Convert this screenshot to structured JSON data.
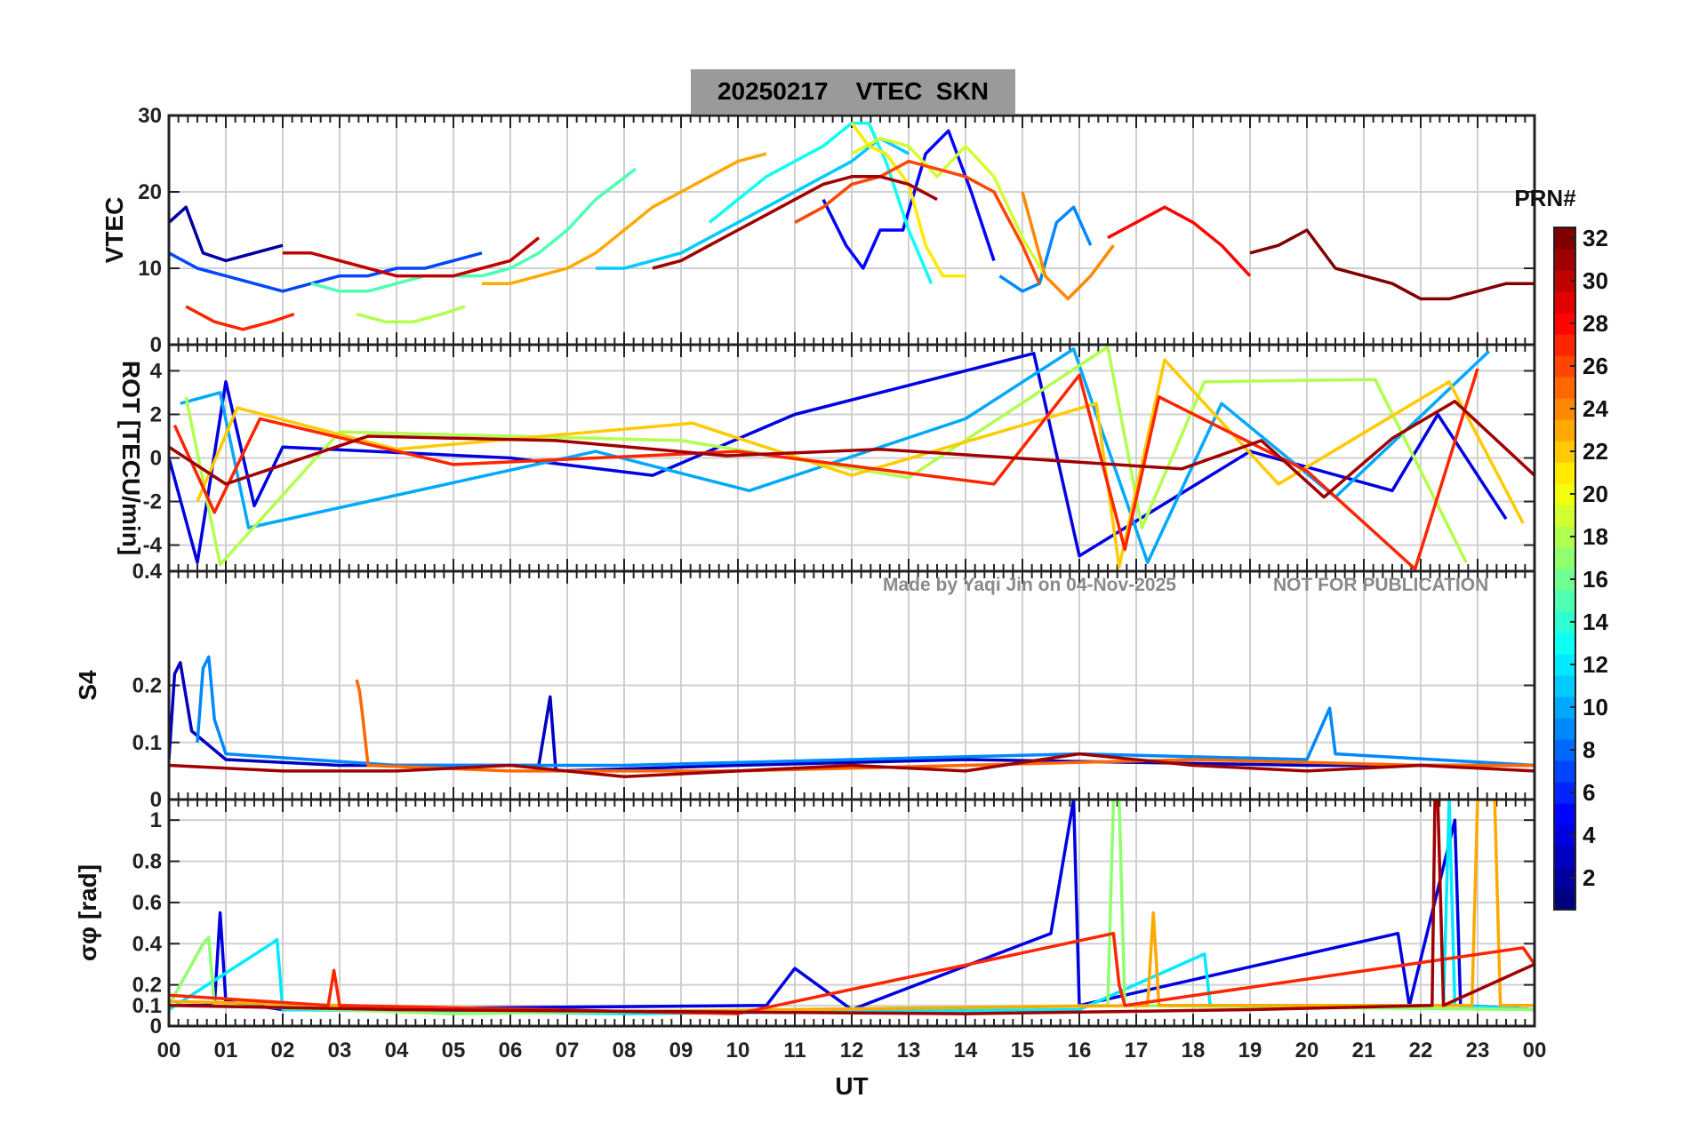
{
  "title": {
    "date": "20250217",
    "quantity": "VTEC",
    "station": "SKN"
  },
  "watermark": {
    "author": "Made by Yaqi Jin on 04-Nov-2025",
    "notice": "NOT FOR PUBLICATION"
  },
  "colorbar": {
    "title": "PRN#",
    "ticks": [
      "32",
      "30",
      "28",
      "26",
      "24",
      "22",
      "20",
      "18",
      "16",
      "14",
      "12",
      "10",
      "8",
      "6",
      "4",
      "2"
    ],
    "range": [
      1,
      32
    ],
    "colormap": "jet"
  },
  "chart_data": [
    {
      "type": "line",
      "panel": "vtec",
      "ylabel": "VTEC",
      "ylim": [
        0,
        30
      ],
      "yticks": [
        "0",
        "10",
        "20",
        "30"
      ],
      "xlim": [
        0,
        24
      ],
      "grid": true,
      "series": [
        {
          "name": "PRN 2",
          "prn": 2,
          "x": [
            0.0,
            0.3,
            0.6,
            1.0,
            1.5,
            2.0
          ],
          "y": [
            16,
            18,
            12,
            11,
            12,
            13
          ]
        },
        {
          "name": "PRN 5",
          "prn": 5,
          "x": [
            11.5,
            11.9,
            12.2,
            12.5,
            12.9,
            13.3,
            13.7,
            14.1,
            14.5
          ],
          "y": [
            19,
            13,
            10,
            15,
            15,
            25,
            28,
            20,
            11
          ]
        },
        {
          "name": "PRN 7",
          "prn": 7,
          "x": [
            0.0,
            0.5,
            1.0,
            1.5,
            2.0,
            2.5,
            3.0,
            3.5,
            4.0,
            4.5,
            5.0,
            5.5
          ],
          "y": [
            12,
            10,
            9,
            8,
            7,
            8,
            9,
            9,
            10,
            10,
            11,
            12
          ]
        },
        {
          "name": "PRN 9",
          "prn": 9,
          "x": [
            14.6,
            15.0,
            15.3,
            15.6,
            15.9,
            16.2
          ],
          "y": [
            9,
            7,
            8,
            16,
            18,
            13
          ]
        },
        {
          "name": "PRN 11",
          "prn": 11,
          "x": [
            7.5,
            8.0,
            8.5,
            9.0,
            9.5,
            10.0,
            10.5,
            11.0,
            11.5,
            12.0,
            12.5,
            13.0
          ],
          "y": [
            10,
            10,
            11,
            12,
            14,
            16,
            18,
            20,
            22,
            24,
            27,
            25
          ]
        },
        {
          "name": "PRN 13",
          "prn": 13,
          "x": [
            9.5,
            10.0,
            10.5,
            11.0,
            11.5,
            12.0,
            12.3,
            12.6,
            13.0,
            13.4
          ],
          "y": [
            16,
            19,
            22,
            24,
            26,
            29,
            29,
            24,
            15,
            8
          ]
        },
        {
          "name": "PRN 15",
          "prn": 15,
          "x": [
            2.5,
            3.0,
            3.5,
            4.0,
            4.5,
            5.0,
            5.5,
            6.0,
            6.5,
            7.0,
            7.5,
            8.2
          ],
          "y": [
            8,
            7,
            7,
            8,
            9,
            9,
            9,
            10,
            12,
            15,
            19,
            23
          ]
        },
        {
          "name": "PRN 18",
          "prn": 18,
          "x": [
            3.3,
            3.8,
            4.3,
            4.8,
            5.2
          ],
          "y": [
            4,
            3,
            3,
            4,
            5
          ]
        },
        {
          "name": "PRN 19",
          "prn": 19,
          "x": [
            12.0,
            12.5,
            13.0,
            13.5,
            14.0,
            14.5,
            15.0,
            15.4
          ],
          "y": [
            25,
            27,
            26,
            22,
            26,
            22,
            14,
            9
          ]
        },
        {
          "name": "PRN 21",
          "prn": 21,
          "x": [
            12.0,
            12.3,
            12.6,
            13.0,
            13.3,
            13.6,
            14.0
          ],
          "y": [
            29,
            26,
            25,
            21,
            13,
            9,
            9
          ]
        },
        {
          "name": "PRN 23",
          "prn": 23,
          "x": [
            5.5,
            6.0,
            6.5,
            7.0,
            7.5,
            8.0,
            8.5,
            9.0,
            9.5,
            10.0,
            10.5
          ],
          "y": [
            8,
            8,
            9,
            10,
            12,
            15,
            18,
            20,
            22,
            24,
            25
          ]
        },
        {
          "name": "PRN 24",
          "prn": 24,
          "x": [
            15.0,
            15.4,
            15.8,
            16.2,
            16.6
          ],
          "y": [
            20,
            9,
            6,
            9,
            13
          ]
        },
        {
          "name": "PRN 26",
          "prn": 26,
          "x": [
            11.0,
            11.5,
            12.0,
            12.5,
            13.0,
            13.5,
            14.0,
            14.5,
            15.0,
            15.3
          ],
          "y": [
            16,
            18,
            21,
            22,
            24,
            23,
            22,
            20,
            13,
            8
          ]
        },
        {
          "name": "PRN 27",
          "prn": 27,
          "x": [
            0.3,
            0.8,
            1.3,
            1.8,
            2.2
          ],
          "y": [
            5,
            3,
            2,
            3,
            4
          ]
        },
        {
          "name": "PRN 28",
          "prn": 28,
          "x": [
            16.5,
            17.0,
            17.5,
            18.0,
            18.5,
            19.0
          ],
          "y": [
            14,
            16,
            18,
            16,
            13,
            9
          ]
        },
        {
          "name": "PRN 30",
          "prn": 30,
          "x": [
            2.0,
            2.5,
            3.0,
            3.5,
            4.0,
            4.5,
            5.0,
            5.5,
            6.0,
            6.5
          ],
          "y": [
            12,
            12,
            11,
            10,
            9,
            9,
            9,
            10,
            11,
            14
          ]
        },
        {
          "name": "PRN 31",
          "prn": 31,
          "x": [
            8.5,
            9.0,
            9.5,
            10.0,
            10.5,
            11.0,
            11.5,
            12.0,
            12.5,
            13.0,
            13.5
          ],
          "y": [
            10,
            11,
            13,
            15,
            17,
            19,
            21,
            22,
            22,
            21,
            19
          ]
        },
        {
          "name": "PRN 32",
          "prn": 32,
          "x": [
            19.0,
            19.5,
            20.0,
            20.5,
            21.0,
            21.5,
            22.0,
            22.5,
            23.0,
            23.5,
            24.0
          ],
          "y": [
            12,
            13,
            15,
            10,
            9,
            8,
            6,
            6,
            7,
            8,
            8
          ]
        }
      ]
    },
    {
      "type": "line",
      "panel": "rot",
      "ylabel": "ROT [TECU/min]",
      "ylim": [
        -5.2,
        5.2
      ],
      "yticks": [
        "-4",
        "-2",
        "0",
        "2",
        "4"
      ],
      "xlim": [
        0,
        24
      ],
      "grid": true,
      "series": [
        {
          "name": "PRN 4",
          "prn": 4,
          "x": [
            0.0,
            0.5,
            1.0,
            1.5,
            2.0,
            6.0,
            8.5,
            11.0,
            15.2,
            16.0,
            19.0,
            21.5,
            22.3,
            23.5
          ],
          "y": [
            0,
            -4.8,
            3.5,
            -2.2,
            0.5,
            0,
            -0.8,
            2.0,
            4.8,
            -4.5,
            0.3,
            -1.5,
            2.0,
            -2.8
          ]
        },
        {
          "name": "PRN 10",
          "prn": 10,
          "x": [
            0.2,
            0.9,
            1.4,
            7.5,
            10.2,
            14.0,
            15.9,
            17.2,
            18.5,
            20.5,
            23.2
          ],
          "y": [
            2.5,
            3.0,
            -3.2,
            0.3,
            -1.5,
            1.8,
            5.0,
            -4.8,
            2.5,
            -1.8,
            4.9
          ]
        },
        {
          "name": "PRN 18",
          "prn": 18,
          "x": [
            0.3,
            0.9,
            3.0,
            9.0,
            13.0,
            16.5,
            17.1,
            18.2,
            21.2,
            22.8
          ],
          "y": [
            2.8,
            -4.9,
            1.2,
            0.8,
            -0.9,
            5.1,
            -3.2,
            3.5,
            3.6,
            -4.8
          ]
        },
        {
          "name": "PRN 22",
          "prn": 22,
          "x": [
            0.5,
            1.2,
            4.0,
            9.2,
            12.0,
            16.3,
            16.7,
            17.5,
            19.5,
            22.5,
            23.8
          ],
          "y": [
            -2.0,
            2.3,
            0.4,
            1.6,
            -0.8,
            2.5,
            -5.0,
            4.5,
            -1.2,
            3.5,
            -3.0
          ]
        },
        {
          "name": "PRN 27",
          "prn": 27,
          "x": [
            0.1,
            0.8,
            1.6,
            5.0,
            10.0,
            14.5,
            16.0,
            16.8,
            17.4,
            20.0,
            21.9,
            23.0
          ],
          "y": [
            1.5,
            -2.5,
            1.8,
            -0.3,
            0.3,
            -1.2,
            3.8,
            -4.2,
            2.8,
            -0.6,
            -5.1,
            4.1
          ]
        },
        {
          "name": "PRN 31",
          "prn": 31,
          "x": [
            0.0,
            1.0,
            3.5,
            6.8,
            9.8,
            12.5,
            17.8,
            19.2,
            20.3,
            21.5,
            22.6,
            24.0
          ],
          "y": [
            0.5,
            -1.2,
            1.0,
            0.8,
            0.1,
            0.4,
            -0.5,
            0.8,
            -1.8,
            0.9,
            2.6,
            -0.8
          ]
        }
      ]
    },
    {
      "type": "line",
      "panel": "s4",
      "ylabel": "S4",
      "ylim": [
        0,
        0.4
      ],
      "yticks": [
        "0",
        "0.1",
        "0.2",
        "0.4"
      ],
      "xlim": [
        0,
        24
      ],
      "grid": true,
      "series": [
        {
          "name": "PRN 3",
          "prn": 3,
          "x": [
            0.0,
            0.1,
            0.2,
            0.4,
            1.0,
            3.0,
            6.5,
            6.7,
            6.8,
            10.0,
            14.0,
            20.0,
            24.0
          ],
          "y": [
            0.07,
            0.22,
            0.24,
            0.12,
            0.07,
            0.06,
            0.06,
            0.18,
            0.05,
            0.06,
            0.07,
            0.06,
            0.06
          ]
        },
        {
          "name": "PRN 9",
          "prn": 9,
          "x": [
            0.5,
            0.6,
            0.7,
            0.8,
            1.0,
            4.0,
            8.0,
            12.0,
            16.0,
            20.0,
            20.4,
            20.5,
            24.0
          ],
          "y": [
            0.1,
            0.23,
            0.25,
            0.14,
            0.08,
            0.06,
            0.06,
            0.07,
            0.08,
            0.07,
            0.16,
            0.08,
            0.06
          ]
        },
        {
          "name": "PRN 25",
          "prn": 25,
          "x": [
            3.3,
            3.35,
            3.4,
            3.5,
            6.0,
            10.0,
            14.0,
            18.0,
            22.0,
            24.0
          ],
          "y": [
            0.21,
            0.19,
            0.15,
            0.06,
            0.05,
            0.05,
            0.06,
            0.07,
            0.06,
            0.06
          ]
        },
        {
          "name": "PRN 31",
          "prn": 31,
          "x": [
            0.0,
            2.0,
            4.0,
            6.0,
            8.0,
            10.0,
            12.0,
            14.0,
            16.0,
            18.0,
            20.0,
            22.0,
            24.0
          ],
          "y": [
            0.06,
            0.05,
            0.05,
            0.06,
            0.04,
            0.05,
            0.06,
            0.05,
            0.08,
            0.06,
            0.05,
            0.06,
            0.05
          ]
        }
      ]
    },
    {
      "type": "line",
      "panel": "sigma_phi",
      "ylabel": "σφ [rad]",
      "ylim": [
        0,
        1.1
      ],
      "yticks": [
        "0",
        "0.1",
        "0.2",
        "0.4",
        "0.6",
        "0.8",
        "1"
      ],
      "xlim": [
        0,
        24
      ],
      "grid": true,
      "series": [
        {
          "name": "PRN 4",
          "prn": 4,
          "x": [
            0.0,
            0.8,
            0.9,
            1.0,
            2.0,
            10.5,
            11.0,
            12.0,
            15.5,
            15.9,
            16.0,
            21.6,
            21.8,
            22.6,
            22.7,
            24.0
          ],
          "y": [
            0.1,
            0.1,
            0.55,
            0.12,
            0.08,
            0.1,
            0.28,
            0.08,
            0.45,
            1.1,
            0.1,
            0.45,
            0.1,
            1.0,
            0.1,
            0.08
          ]
        },
        {
          "name": "PRN 12",
          "prn": 12,
          "x": [
            0.0,
            1.8,
            1.9,
            2.0,
            8.0,
            16.0,
            18.2,
            18.3,
            22.4,
            22.5,
            22.6,
            24.0
          ],
          "y": [
            0.08,
            0.4,
            0.42,
            0.08,
            0.06,
            0.08,
            0.35,
            0.1,
            0.1,
            1.1,
            0.1,
            0.08
          ]
        },
        {
          "name": "PRN 17",
          "prn": 17,
          "x": [
            0.0,
            0.6,
            0.7,
            0.8,
            5.0,
            16.5,
            16.6,
            16.7,
            16.8,
            24.0
          ],
          "y": [
            0.1,
            0.4,
            0.43,
            0.1,
            0.06,
            0.1,
            1.1,
            1.1,
            0.1,
            0.08
          ]
        },
        {
          "name": "PRN 23",
          "prn": 23,
          "x": [
            0.0,
            3.0,
            8.0,
            17.2,
            17.3,
            17.4,
            22.9,
            23.0,
            23.1,
            23.3,
            23.4,
            24.0
          ],
          "y": [
            0.12,
            0.1,
            0.07,
            0.1,
            0.55,
            0.1,
            0.1,
            1.1,
            1.1,
            1.1,
            0.1,
            0.1
          ]
        },
        {
          "name": "PRN 27",
          "prn": 27,
          "x": [
            0.0,
            2.8,
            2.9,
            3.0,
            10.0,
            16.6,
            16.7,
            16.8,
            23.8,
            24.0
          ],
          "y": [
            0.15,
            0.1,
            0.27,
            0.1,
            0.06,
            0.45,
            0.2,
            0.1,
            0.38,
            0.3
          ]
        },
        {
          "name": "PRN 31",
          "prn": 31,
          "x": [
            0.0,
            4.0,
            9.0,
            14.0,
            19.0,
            22.2,
            22.25,
            22.3,
            22.4,
            24.0
          ],
          "y": [
            0.1,
            0.08,
            0.07,
            0.06,
            0.08,
            0.1,
            1.1,
            1.1,
            0.1,
            0.3
          ]
        }
      ]
    }
  ],
  "xaxis": {
    "label": "UT",
    "ticks": [
      "00",
      "01",
      "02",
      "03",
      "04",
      "05",
      "06",
      "07",
      "08",
      "09",
      "10",
      "11",
      "12",
      "13",
      "14",
      "15",
      "16",
      "17",
      "18",
      "19",
      "20",
      "21",
      "22",
      "23",
      "00"
    ]
  }
}
